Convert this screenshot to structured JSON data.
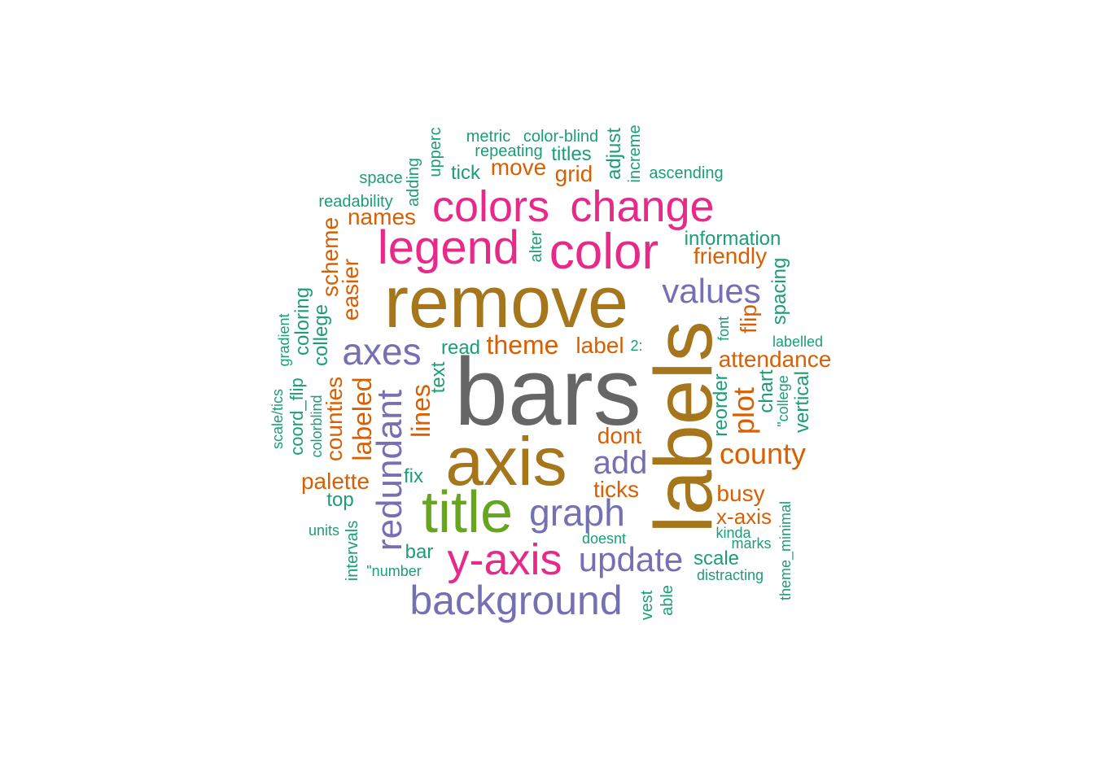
{
  "palette": {
    "teal": "#1b9e77",
    "orange": "#d95f02",
    "purple": "#7570b3",
    "magenta": "#e7298a",
    "green": "#66a61e",
    "gold": "#a6761d",
    "gray": "#666666"
  },
  "words": [
    {
      "text": "bars",
      "color": "gray"
    },
    {
      "text": "labels",
      "color": "gold"
    },
    {
      "text": "remove",
      "color": "gold"
    },
    {
      "text": "axis",
      "color": "gold"
    },
    {
      "text": "title",
      "color": "green"
    },
    {
      "text": "color",
      "color": "magenta"
    },
    {
      "text": "legend",
      "color": "magenta"
    },
    {
      "text": "colors",
      "color": "magenta"
    },
    {
      "text": "change",
      "color": "magenta"
    },
    {
      "text": "y-axis",
      "color": "magenta"
    },
    {
      "text": "background",
      "color": "purple"
    },
    {
      "text": "graph",
      "color": "purple"
    },
    {
      "text": "axes",
      "color": "purple"
    },
    {
      "text": "values",
      "color": "purple"
    },
    {
      "text": "redundant",
      "color": "purple"
    },
    {
      "text": "update",
      "color": "purple"
    },
    {
      "text": "add",
      "color": "purple"
    },
    {
      "text": "county",
      "color": "orange"
    },
    {
      "text": "plot",
      "color": "orange"
    },
    {
      "text": "theme",
      "color": "orange"
    },
    {
      "text": "attendance",
      "color": "orange"
    },
    {
      "text": "lines",
      "color": "orange"
    },
    {
      "text": "labeled",
      "color": "orange"
    },
    {
      "text": "names",
      "color": "orange"
    },
    {
      "text": "scheme",
      "color": "orange"
    },
    {
      "text": "friendly",
      "color": "orange"
    },
    {
      "text": "move",
      "color": "orange"
    },
    {
      "text": "label",
      "color": "orange"
    },
    {
      "text": "dont",
      "color": "orange"
    },
    {
      "text": "ticks",
      "color": "orange"
    },
    {
      "text": "palette",
      "color": "orange"
    },
    {
      "text": "busy",
      "color": "orange"
    },
    {
      "text": "x-axis",
      "color": "orange"
    },
    {
      "text": "easier",
      "color": "orange"
    },
    {
      "text": "counties",
      "color": "orange"
    },
    {
      "text": "flip",
      "color": "orange"
    },
    {
      "text": "grid",
      "color": "orange"
    },
    {
      "text": "information",
      "color": "teal"
    },
    {
      "text": "titles",
      "color": "teal"
    },
    {
      "text": "read",
      "color": "teal"
    },
    {
      "text": "tick",
      "color": "teal"
    },
    {
      "text": "adjust",
      "color": "teal"
    },
    {
      "text": "spacing",
      "color": "teal"
    },
    {
      "text": "coloring",
      "color": "teal"
    },
    {
      "text": "college",
      "color": "teal"
    },
    {
      "text": "text",
      "color": "teal"
    },
    {
      "text": "reorder",
      "color": "teal"
    },
    {
      "text": "chart",
      "color": "teal"
    },
    {
      "text": "vertical",
      "color": "teal"
    },
    {
      "text": "fix",
      "color": "teal"
    },
    {
      "text": "top",
      "color": "teal"
    },
    {
      "text": "scale",
      "color": "teal"
    },
    {
      "text": "bar",
      "color": "teal"
    },
    {
      "text": "coord_flip",
      "color": "teal"
    },
    {
      "text": "metric",
      "color": "teal"
    },
    {
      "text": "color-blind",
      "color": "teal"
    },
    {
      "text": "repeating",
      "color": "teal"
    },
    {
      "text": "upperc",
      "color": "teal"
    },
    {
      "text": "increme",
      "color": "teal"
    },
    {
      "text": "ascending",
      "color": "teal"
    },
    {
      "text": "space",
      "color": "teal"
    },
    {
      "text": "adding",
      "color": "teal"
    },
    {
      "text": "readability",
      "color": "teal"
    },
    {
      "text": "alter",
      "color": "teal"
    },
    {
      "text": "gradient",
      "color": "teal"
    },
    {
      "text": "scale/tics",
      "color": "teal"
    },
    {
      "text": "colorblind",
      "color": "teal"
    },
    {
      "text": "font",
      "color": "teal"
    },
    {
      "text": "labelled",
      "color": "teal"
    },
    {
      "text": "2:",
      "color": "teal"
    },
    {
      "text": "\"college",
      "color": "teal"
    },
    {
      "text": "units",
      "color": "teal"
    },
    {
      "text": "intervals",
      "color": "teal"
    },
    {
      "text": "\"number",
      "color": "teal"
    },
    {
      "text": "doesnt",
      "color": "teal"
    },
    {
      "text": "kinda",
      "color": "teal"
    },
    {
      "text": "marks",
      "color": "teal"
    },
    {
      "text": "distracting",
      "color": "teal"
    },
    {
      "text": "theme_minimal",
      "color": "teal"
    },
    {
      "text": "vest",
      "color": "teal"
    },
    {
      "text": "able",
      "color": "teal"
    }
  ]
}
